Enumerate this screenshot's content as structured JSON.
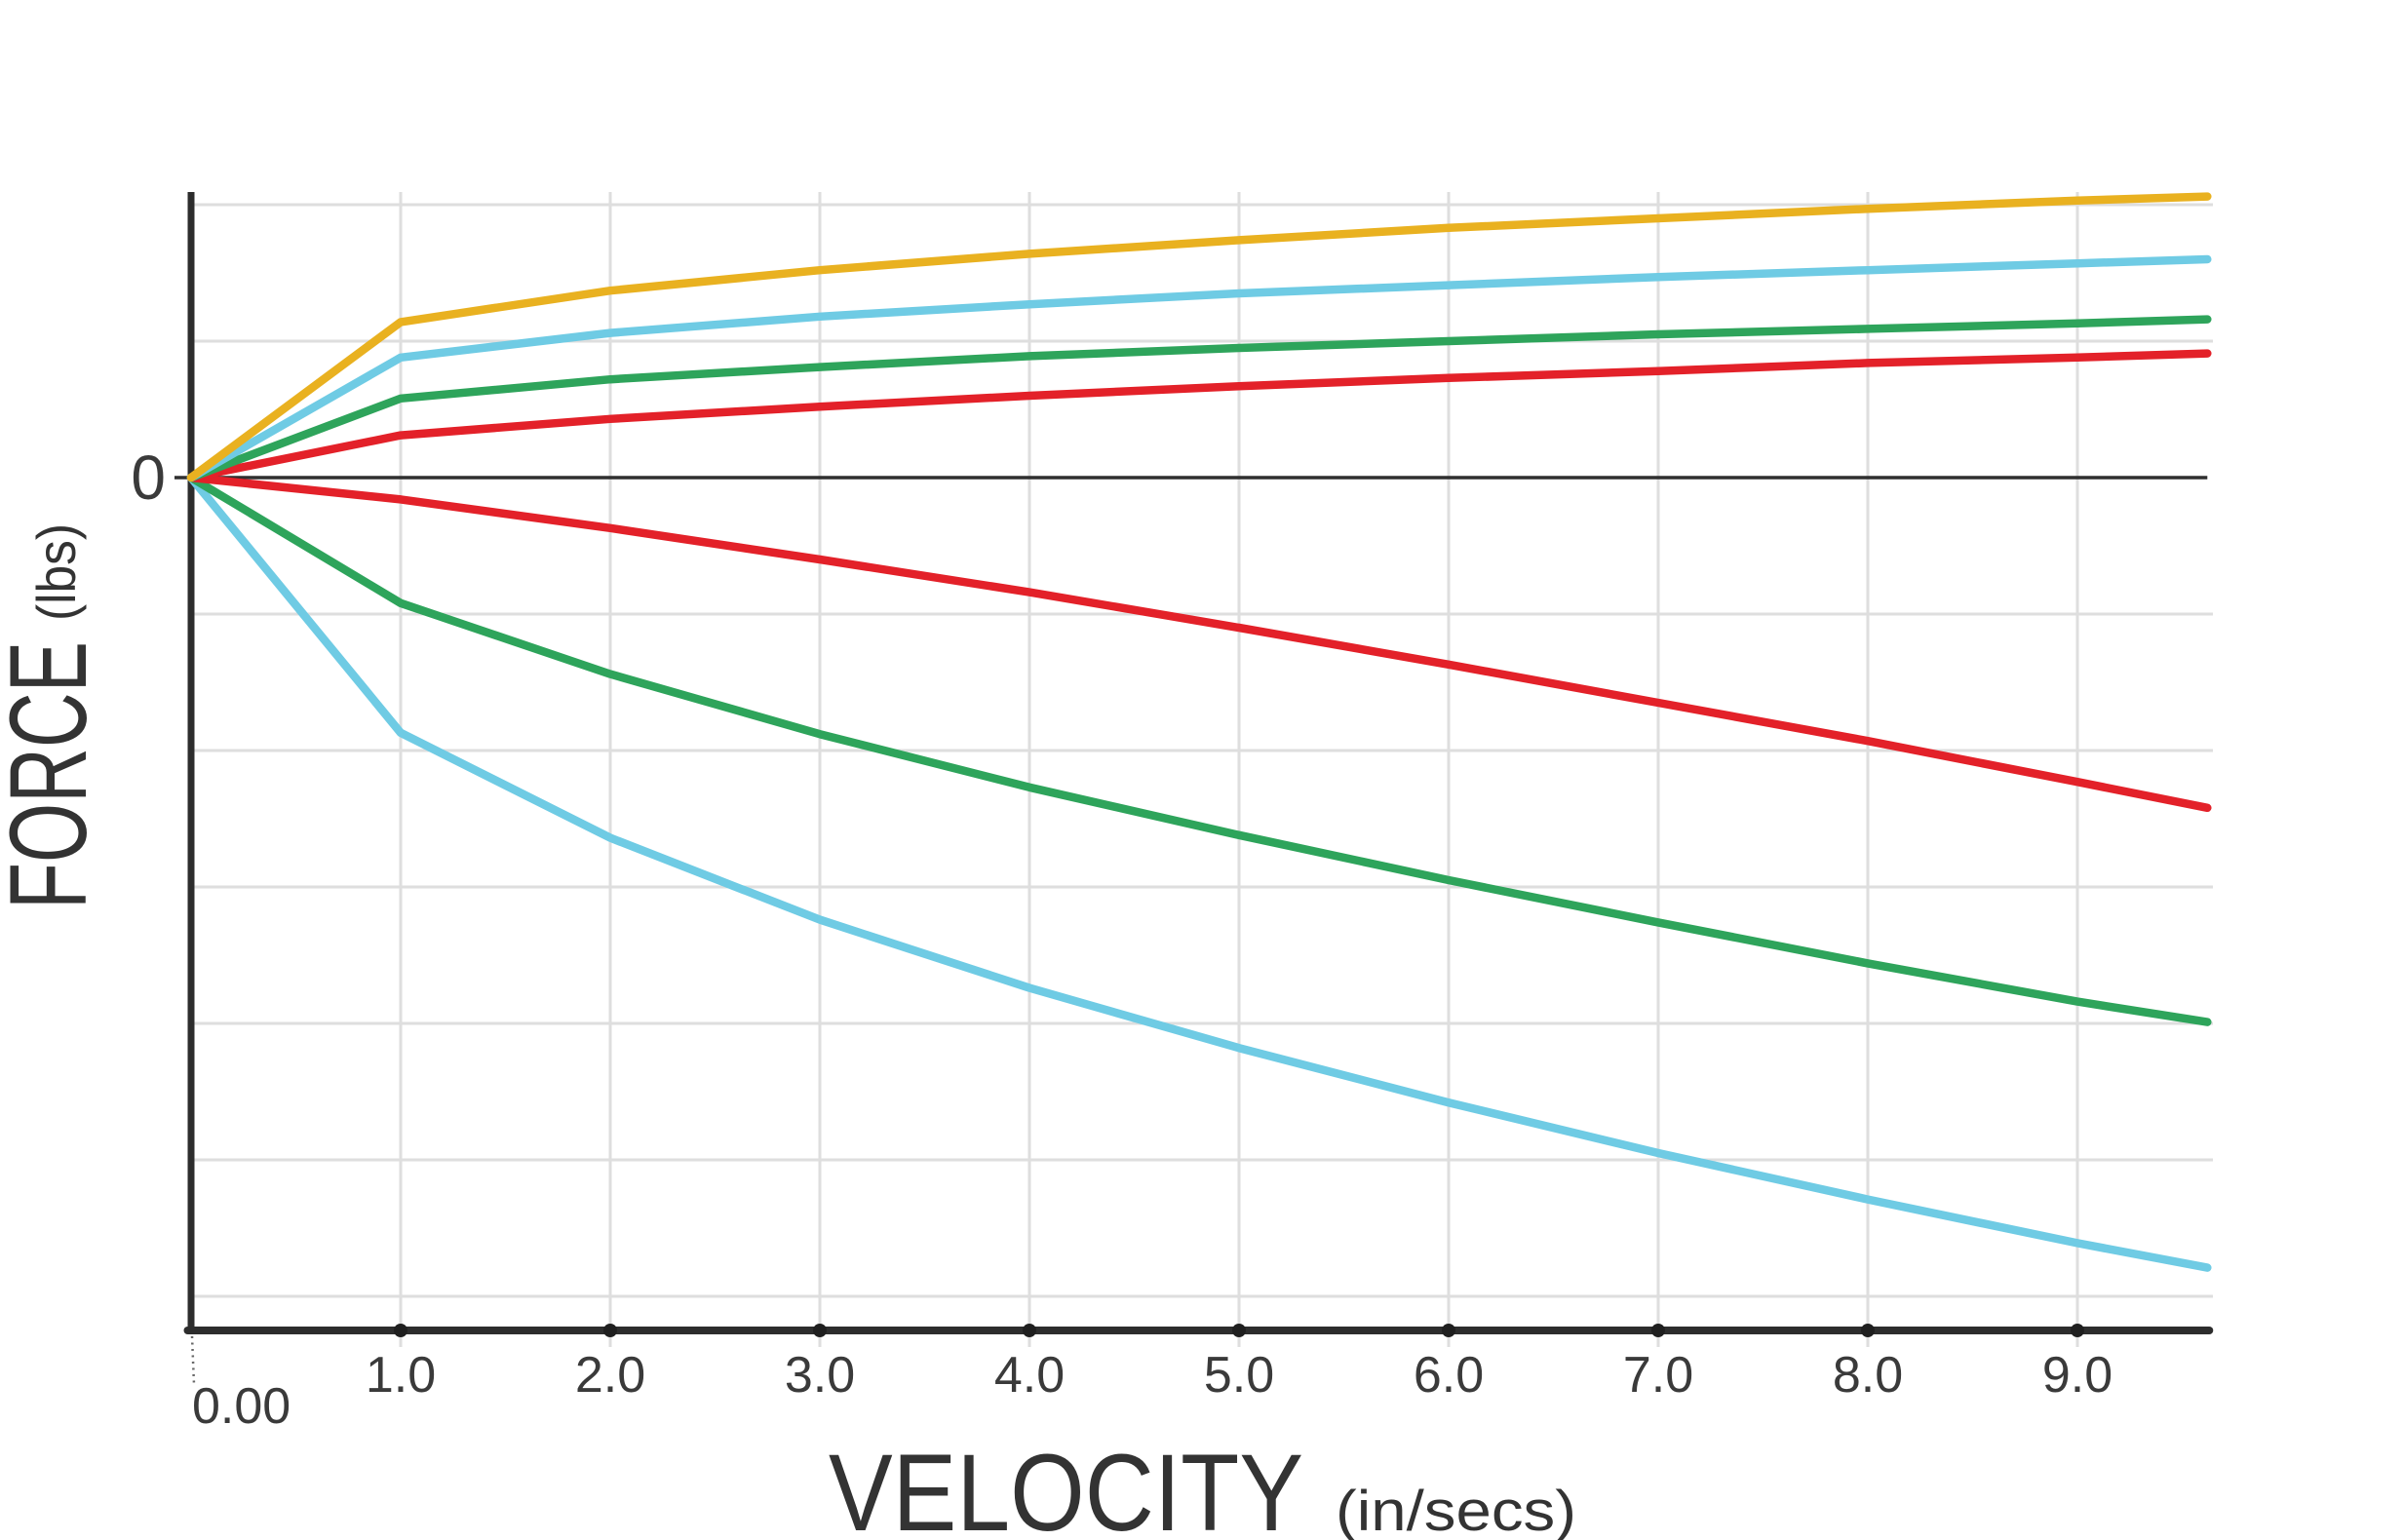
{
  "chart": {
    "background": "#ffffff",
    "axis_color": "#2d2d2d",
    "zero_line_color": "#2f2f2f",
    "grid_color": "#dedede",
    "tick_text_color": "#3a3a3a",
    "title_text_color": "#333333",
    "y_label": {
      "text": "FORCE",
      "unit": "(lbs)"
    },
    "x_label": {
      "text": "VELOCITY",
      "unit": "(in/secs)"
    },
    "y_axis": {
      "zero_label": "0"
    },
    "x_axis": {
      "origin_label": "0.00",
      "tick_labels": [
        "1.0",
        "2.0",
        "3.0",
        "4.0",
        "5.0",
        "6.0",
        "7.0",
        "8.0",
        "9.0"
      ],
      "tick_values": [
        1,
        2,
        3,
        4,
        5,
        6,
        7,
        8,
        9
      ]
    }
  },
  "chart_data": {
    "type": "line",
    "title": "",
    "xlabel": "VELOCITY (in/secs)",
    "ylabel": "FORCE (lbs)",
    "x_range": [
      0,
      9.62
    ],
    "x": [
      0,
      1,
      2,
      3,
      4,
      5,
      6,
      7,
      8,
      9,
      9.62
    ],
    "y_unit_note": "y values in gridline units; y axis shows only the 0 label, gridline spacing unlabeled",
    "y_gridlines_units": [
      2,
      1,
      -1,
      -2,
      -3,
      -4,
      -5,
      -6
    ],
    "grid": "on",
    "legend": "none",
    "series": [
      {
        "name": "cyan-negative",
        "color": "#6fcbe4",
        "values": [
          0,
          -1.87,
          -2.64,
          -3.24,
          -3.74,
          -4.18,
          -4.58,
          -4.95,
          -5.29,
          -5.61,
          -5.79
        ]
      },
      {
        "name": "green-negative",
        "color": "#2ea45b",
        "values": [
          0,
          -0.92,
          -1.44,
          -1.88,
          -2.27,
          -2.62,
          -2.95,
          -3.26,
          -3.56,
          -3.84,
          -3.99
        ]
      },
      {
        "name": "red-negative",
        "color": "#e32129",
        "values": [
          0,
          -0.16,
          -0.37,
          -0.6,
          -0.84,
          -1.1,
          -1.37,
          -1.65,
          -1.93,
          -2.23,
          -2.42
        ]
      },
      {
        "name": "red-positive",
        "color": "#e32129",
        "values": [
          0,
          0.31,
          0.43,
          0.52,
          0.6,
          0.67,
          0.73,
          0.78,
          0.84,
          0.88,
          0.91
        ]
      },
      {
        "name": "green-positive",
        "color": "#2ea45b",
        "values": [
          0,
          0.58,
          0.72,
          0.81,
          0.89,
          0.95,
          1.0,
          1.05,
          1.09,
          1.13,
          1.16
        ]
      },
      {
        "name": "cyan-positive",
        "color": "#6fcbe4",
        "values": [
          0,
          0.88,
          1.06,
          1.18,
          1.27,
          1.35,
          1.41,
          1.47,
          1.52,
          1.57,
          1.6
        ]
      },
      {
        "name": "yellow-positive",
        "color": "#e9b120",
        "values": [
          0,
          1.14,
          1.37,
          1.52,
          1.64,
          1.74,
          1.83,
          1.9,
          1.97,
          2.03,
          2.06
        ]
      }
    ]
  }
}
